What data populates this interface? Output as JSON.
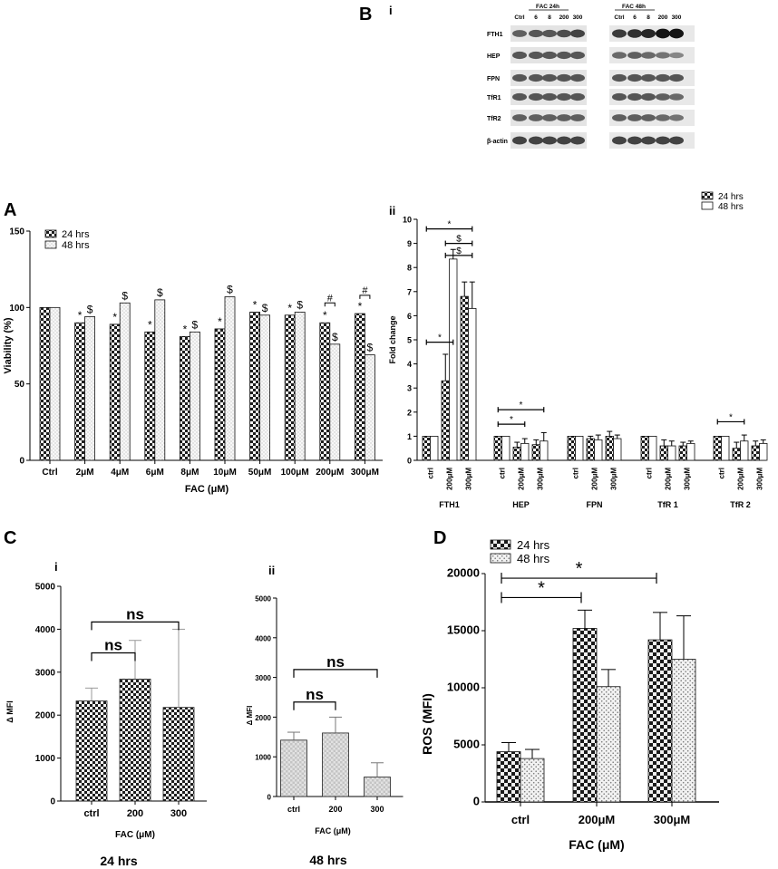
{
  "panel_labels": {
    "A": "A",
    "B": "B",
    "Bi": "i",
    "Bii": "ii",
    "C": "C",
    "Ci": "i",
    "Cii": "ii",
    "D": "D"
  },
  "blot": {
    "group1_label": "FAC 24h",
    "group2_label": "FAC 48h",
    "lane_labels": [
      "Ctrl",
      "6",
      "8",
      "200",
      "300"
    ],
    "rows": [
      {
        "name": "FTH1",
        "g1": [
          0.55,
          0.6,
          0.6,
          0.65,
          0.7
        ],
        "g2": [
          0.75,
          0.8,
          0.85,
          0.95,
          0.95
        ]
      },
      {
        "name": "HEP",
        "g1": [
          0.6,
          0.6,
          0.6,
          0.6,
          0.6
        ],
        "g2": [
          0.5,
          0.55,
          0.5,
          0.45,
          0.35
        ]
      },
      {
        "name": "FPN",
        "g1": [
          0.6,
          0.6,
          0.6,
          0.6,
          0.6
        ],
        "g2": [
          0.6,
          0.6,
          0.6,
          0.6,
          0.6
        ]
      },
      {
        "name": "TfR1",
        "g1": [
          0.6,
          0.6,
          0.6,
          0.6,
          0.6
        ],
        "g2": [
          0.6,
          0.6,
          0.6,
          0.55,
          0.5
        ]
      },
      {
        "name": "TfR2",
        "g1": [
          0.55,
          0.55,
          0.55,
          0.55,
          0.55
        ],
        "g2": [
          0.55,
          0.55,
          0.55,
          0.5,
          0.45
        ]
      },
      {
        "name": "β-actin",
        "g1": [
          0.7,
          0.7,
          0.7,
          0.7,
          0.7
        ],
        "g2": [
          0.7,
          0.7,
          0.7,
          0.7,
          0.7
        ]
      }
    ]
  },
  "colors": {
    "dark": "#2a2a2a",
    "light": "#f2f2f2",
    "bar_edge": "#111111",
    "gray_err": "#999999"
  },
  "chart_data": [
    {
      "id": "A",
      "type": "bar",
      "ylabel": "Viability (%)",
      "xlabel": "FAC (μM)",
      "ylim": [
        0,
        150
      ],
      "yticks": [
        0,
        50,
        100,
        150
      ],
      "categories": [
        "Ctrl",
        "2μM",
        "4μM",
        "6μM",
        "8μM",
        "10μM",
        "50μM",
        "100μM",
        "200μM",
        "300μM"
      ],
      "legend": [
        "24 hrs",
        "48 hrs"
      ],
      "series": [
        {
          "name": "24 hrs",
          "values": [
            100,
            90,
            89,
            84,
            81,
            86,
            97,
            95,
            90,
            96
          ]
        },
        {
          "name": "48 hrs",
          "values": [
            100,
            94,
            103,
            105,
            84,
            107,
            95,
            97,
            76,
            69
          ]
        }
      ],
      "marks": [
        {
          "cat": 1,
          "s": 0,
          "t": "*"
        },
        {
          "cat": 1,
          "s": 1,
          "t": "$"
        },
        {
          "cat": 2,
          "s": 0,
          "t": "*"
        },
        {
          "cat": 2,
          "s": 1,
          "t": "$"
        },
        {
          "cat": 3,
          "s": 0,
          "t": "*"
        },
        {
          "cat": 3,
          "s": 1,
          "t": "$"
        },
        {
          "cat": 4,
          "s": 0,
          "t": "*"
        },
        {
          "cat": 4,
          "s": 1,
          "t": "$"
        },
        {
          "cat": 5,
          "s": 0,
          "t": "*"
        },
        {
          "cat": 5,
          "s": 1,
          "t": "$"
        },
        {
          "cat": 6,
          "s": 0,
          "t": "*"
        },
        {
          "cat": 6,
          "s": 1,
          "t": "$"
        },
        {
          "cat": 7,
          "s": 0,
          "t": "*"
        },
        {
          "cat": 7,
          "s": 1,
          "t": "$"
        },
        {
          "cat": 8,
          "s": 0,
          "t": "*"
        },
        {
          "cat": 8,
          "s": 1,
          "t": "$"
        },
        {
          "cat": 9,
          "s": 0,
          "t": "*"
        },
        {
          "cat": 9,
          "s": 1,
          "t": "$"
        }
      ],
      "brackets": [
        {
          "cat": 8,
          "t": "#",
          "y": 103
        },
        {
          "cat": 9,
          "t": "#",
          "y": 108
        }
      ]
    },
    {
      "id": "Bii",
      "type": "bar",
      "ylabel": "Fold change",
      "ylim": [
        0,
        10
      ],
      "yticks": [
        0,
        1,
        2,
        3,
        4,
        5,
        6,
        7,
        8,
        9,
        10
      ],
      "groups": [
        "FTH1",
        "HEP",
        "FPN",
        "TfR 1",
        "TfR 2"
      ],
      "sub_categories": [
        "ctrl",
        "200μM",
        "300μM"
      ],
      "legend": [
        "24 hrs",
        "48 hrs"
      ],
      "series": [
        {
          "name": "24 hrs",
          "values": [
            [
              1,
              3.3,
              6.8
            ],
            [
              1,
              0.55,
              0.65
            ],
            [
              1,
              0.9,
              1.0
            ],
            [
              1,
              0.6,
              0.6
            ],
            [
              1,
              0.5,
              0.6
            ]
          ]
        },
        {
          "name": "48 hrs",
          "values": [
            [
              1,
              8.35,
              6.3
            ],
            [
              1,
              0.7,
              0.8
            ],
            [
              1,
              0.85,
              0.9
            ],
            [
              1,
              0.6,
              0.7
            ],
            [
              1,
              0.8,
              0.7
            ]
          ]
        }
      ],
      "errors": [
        {
          "name": "24 hrs",
          "values": [
            [
              0,
              1.1,
              0.6
            ],
            [
              0,
              0.2,
              0.2
            ],
            [
              0,
              0.1,
              0.2
            ],
            [
              0,
              0.25,
              0.15
            ],
            [
              0,
              0.25,
              0.2
            ]
          ]
        },
        {
          "name": "48 hrs",
          "values": [
            [
              0,
              0.4,
              1.1
            ],
            [
              0,
              0.2,
              0.35
            ],
            [
              0,
              0.2,
              0.15
            ],
            [
              0,
              0.2,
              0.1
            ],
            [
              0,
              0.25,
              0.15
            ]
          ]
        }
      ],
      "brackets": [
        {
          "g1": 0,
          "i1": 0,
          "g2": 0,
          "i2": 2,
          "y": 9.6,
          "t": "*"
        },
        {
          "g1": 0,
          "i1": 1,
          "g2": 0,
          "i2": 2,
          "y": 9.0,
          "t": "$"
        },
        {
          "g1": 0,
          "i1": 1,
          "g2": 0,
          "i2": 2,
          "y": 8.5,
          "t": "$"
        },
        {
          "g1": 0,
          "i1": 0,
          "g2": 0,
          "i2": 1,
          "y": 4.9,
          "t": "*"
        },
        {
          "g1": 1,
          "i1": 0,
          "g2": 1,
          "i2": 1,
          "y": 1.5,
          "t": "*"
        },
        {
          "g1": 1,
          "i1": 0,
          "g2": 1,
          "i2": 2,
          "y": 2.1,
          "t": "*"
        },
        {
          "g1": 4,
          "i1": 0,
          "g2": 4,
          "i2": 1,
          "y": 1.6,
          "t": "*"
        }
      ]
    },
    {
      "id": "Ci",
      "type": "bar",
      "ylabel": "Δ MFI",
      "xlabel": "FAC (μM)",
      "caption": "24 hrs",
      "ylim": [
        0,
        5000
      ],
      "yticks": [
        0,
        1000,
        2000,
        3000,
        4000,
        5000
      ],
      "categories": [
        "ctrl",
        "200",
        "300"
      ],
      "values": [
        2330,
        2840,
        2180
      ],
      "errors": [
        300,
        900,
        1820
      ],
      "brackets": [
        {
          "a": 0,
          "b": 1,
          "y": 3450,
          "t": "ns"
        },
        {
          "a": 0,
          "b": 2,
          "y": 4170,
          "t": "ns"
        }
      ]
    },
    {
      "id": "Cii",
      "type": "bar",
      "ylabel": "Δ MFI",
      "xlabel": "FAC (μM)",
      "caption": "48 hrs",
      "ylim": [
        0,
        5000
      ],
      "yticks": [
        0,
        1000,
        2000,
        3000,
        4000,
        5000
      ],
      "categories": [
        "ctrl",
        "200",
        "300"
      ],
      "values": [
        1420,
        1600,
        490
      ],
      "errors": [
        200,
        400,
        360
      ],
      "brackets": [
        {
          "a": 0,
          "b": 1,
          "y": 2380,
          "t": "ns"
        },
        {
          "a": 0,
          "b": 2,
          "y": 3200,
          "t": "ns"
        }
      ]
    },
    {
      "id": "D",
      "type": "bar",
      "ylabel": "ROS (MFI)",
      "xlabel": "FAC (μM)",
      "ylim": [
        0,
        20000
      ],
      "yticks": [
        0,
        5000,
        10000,
        15000,
        20000
      ],
      "categories": [
        "ctrl",
        "200μM",
        "300μM"
      ],
      "legend": [
        "24 hrs",
        "48 hrs"
      ],
      "series": [
        {
          "name": "24 hrs",
          "values": [
            4400,
            15200,
            14200
          ]
        },
        {
          "name": "48 hrs",
          "values": [
            3800,
            10100,
            12500
          ]
        }
      ],
      "errors": [
        {
          "name": "24 hrs",
          "values": [
            800,
            1600,
            2400
          ]
        },
        {
          "name": "48 hrs",
          "values": [
            800,
            1500,
            3800
          ]
        }
      ],
      "brackets": [
        {
          "a": 0,
          "b": 1,
          "y": 17900,
          "t": "*"
        },
        {
          "a": 0,
          "b": 2,
          "y": 19600,
          "t": "*"
        }
      ]
    }
  ]
}
